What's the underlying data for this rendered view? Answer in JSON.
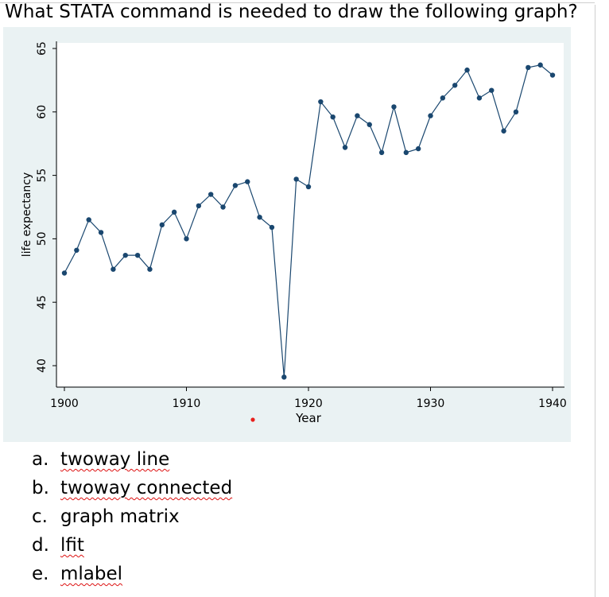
{
  "question": "What STATA command is needed to draw the following graph?",
  "chart_data": {
    "type": "line",
    "markers": true,
    "title": "",
    "xlabel": "Year",
    "ylabel": "life expectancy",
    "xlim": [
      1900,
      1940
    ],
    "ylim": [
      39,
      65
    ],
    "xticks": [
      1900,
      1910,
      1920,
      1930,
      1940
    ],
    "yticks": [
      40,
      45,
      50,
      55,
      60,
      65
    ],
    "x": [
      1900,
      1901,
      1902,
      1903,
      1904,
      1905,
      1906,
      1907,
      1908,
      1909,
      1910,
      1911,
      1912,
      1913,
      1914,
      1915,
      1916,
      1917,
      1918,
      1919,
      1920,
      1921,
      1922,
      1923,
      1924,
      1925,
      1926,
      1927,
      1928,
      1929,
      1930,
      1931,
      1932,
      1933,
      1934,
      1935,
      1936,
      1937,
      1938,
      1939,
      1940
    ],
    "series": [
      {
        "name": "life expectancy",
        "values": [
          47.3,
          49.1,
          51.5,
          50.5,
          47.6,
          48.7,
          48.7,
          47.6,
          51.1,
          52.1,
          50.0,
          52.6,
          53.5,
          52.5,
          54.2,
          54.5,
          51.7,
          50.9,
          39.1,
          54.7,
          54.1,
          60.8,
          59.6,
          57.2,
          59.7,
          59.0,
          56.8,
          60.4,
          56.8,
          57.1,
          59.7,
          61.1,
          62.1,
          63.3,
          61.1,
          61.7,
          58.5,
          60.0,
          63.5,
          63.7,
          62.9
        ]
      }
    ],
    "colors": {
      "line": "#1a476f",
      "marker": "#1a476f",
      "panel_bg": "#eaf2f3",
      "plot_bg": "#ffffff",
      "axis": "#000000",
      "stray_dot": "#e8201c"
    }
  },
  "options": [
    {
      "letter": "a.",
      "text": "twoway line"
    },
    {
      "letter": "b.",
      "text": "twoway connected"
    },
    {
      "letter": "c.",
      "text": "graph matrix"
    },
    {
      "letter": "d.",
      "text": "lfit"
    },
    {
      "letter": "e.",
      "text": "mlabel"
    }
  ]
}
